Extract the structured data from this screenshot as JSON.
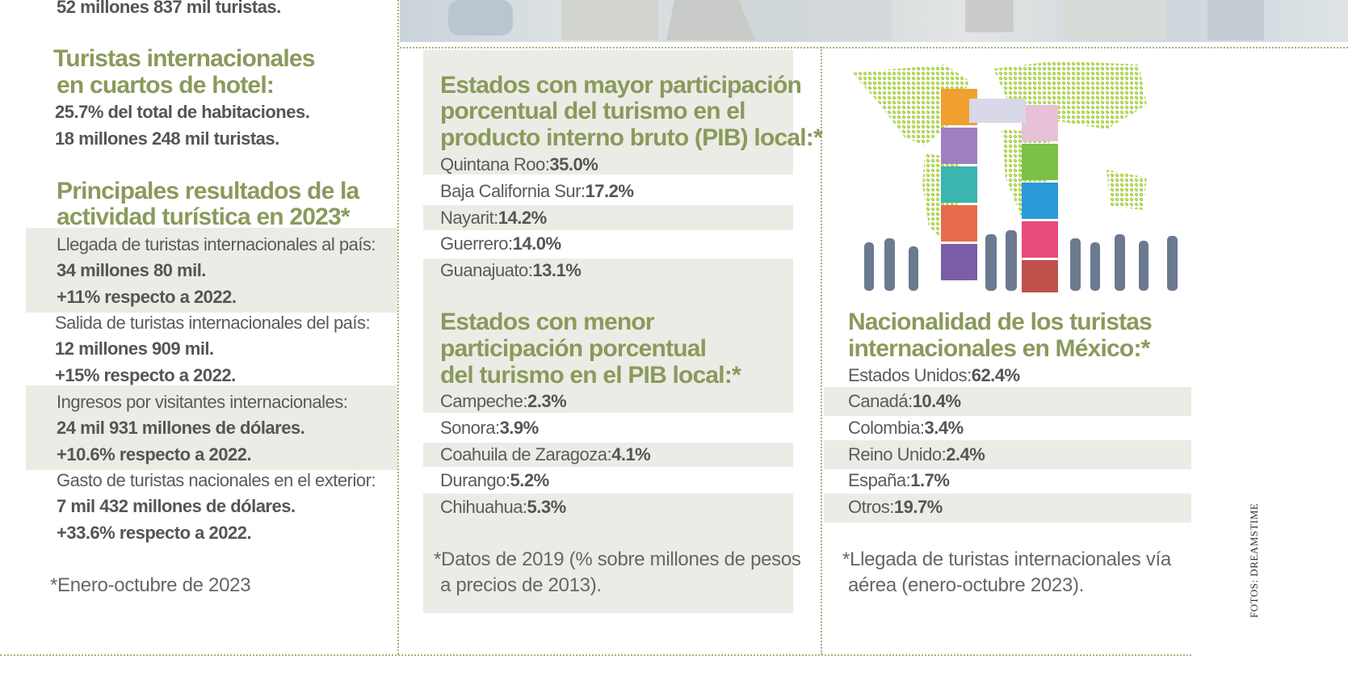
{
  "left": {
    "top_line": "52 millones 837 mil turistas.",
    "hotel_heading": [
      "Turistas internacionales",
      "en cuartos de hotel:"
    ],
    "hotel_lines": [
      "25.7% del total de habitaciones.",
      "18 millones 248 mil turistas."
    ],
    "results_heading": [
      "Principales resultados de la",
      "actividad turística en 2023*"
    ],
    "blocks": [
      {
        "label": "Llegada de turistas internacionales al país:",
        "value": "34 millones 80 mil.",
        "change": "+11% respecto a 2022."
      },
      {
        "label": "Salida de turistas internacionales del país:",
        "value": "12 millones 909 mil.",
        "change": "+15% respecto a 2022."
      },
      {
        "label": "Ingresos por visitantes internacionales:",
        "value": "24 mil 931 millones de dólares.",
        "change": "+10.6% respecto a 2022."
      },
      {
        "label": "Gasto de turistas nacionales en el exterior:",
        "value": "7 mil 432 millones de dólares.",
        "change": "+33.6% respecto a 2022."
      }
    ],
    "note": "*Enero-octubre de 2023"
  },
  "middle": {
    "top_heading": [
      "Estados con mayor participación",
      "porcentual del turismo en el",
      "producto interno bruto (PIB) local:*"
    ],
    "top_rows": [
      {
        "name": "Quintana Roo:",
        "value": "35.0%"
      },
      {
        "name": "Baja California Sur:",
        "value": "17.2%"
      },
      {
        "name": "Nayarit:",
        "value": "14.2%"
      },
      {
        "name": "Guerrero:",
        "value": "14.0%"
      },
      {
        "name": "Guanajuato:",
        "value": "13.1%"
      }
    ],
    "low_heading": [
      "Estados con menor",
      "participación porcentual",
      "del turismo en el PIB local:*"
    ],
    "low_rows": [
      {
        "name": "Campeche:",
        "value": "2.3%"
      },
      {
        "name": "Sonora:",
        "value": "3.9%"
      },
      {
        "name": "Coahuila de Zaragoza:",
        "value": "4.1%"
      },
      {
        "name": "Durango:",
        "value": "5.2%"
      },
      {
        "name": "Chihuahua:",
        "value": "5.3%"
      }
    ],
    "note": [
      "*Datos de 2019 (% sobre millones de pesos",
      "a precios de 2013)."
    ]
  },
  "right": {
    "heading": [
      "Nacionalidad de los turistas",
      "internacionales en México:*"
    ],
    "rows": [
      {
        "name": "Estados Unidos:",
        "value": "62.4%"
      },
      {
        "name": "Canadá:",
        "value": "10.4%"
      },
      {
        "name": "Colombia:",
        "value": "3.4%"
      },
      {
        "name": "Reino Unido:",
        "value": "2.4%"
      },
      {
        "name": "España:",
        "value": "1.7%"
      },
      {
        "name": "Otros:",
        "value": "19.7%"
      }
    ],
    "note": [
      "*Llegada de turistas internacionales vía",
      "aérea (enero-octubre 2023)."
    ]
  },
  "credit": "FOTOS: DREAMSTIME",
  "colors": {
    "accent": "#8a9a5b",
    "band": "#ecece6",
    "dots": "#a8b07a"
  }
}
